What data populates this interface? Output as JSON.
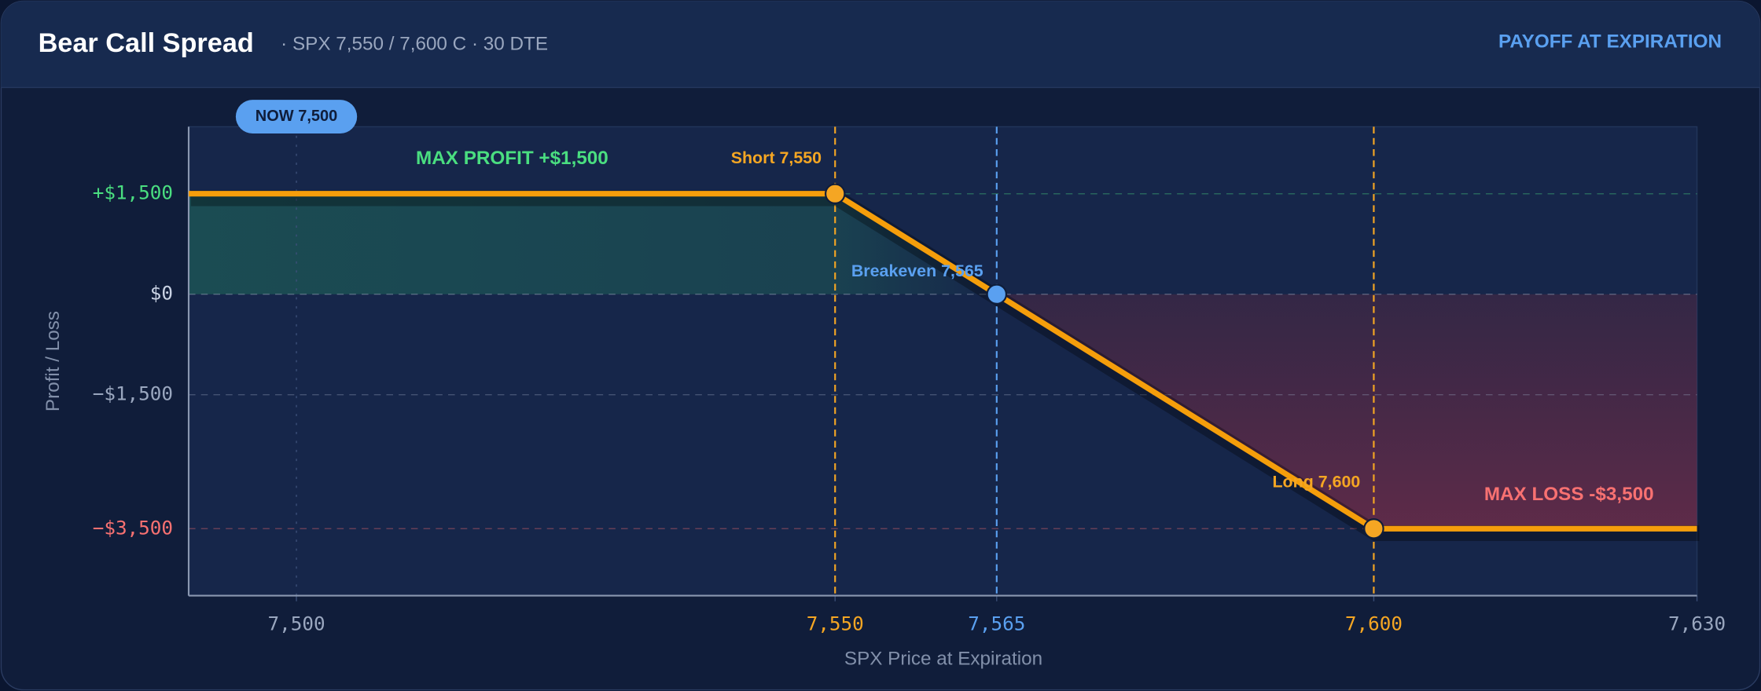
{
  "header": {
    "title": "Bear Call Spread",
    "subtitle": "· SPX 7,550 / 7,600 C · 30 DTE",
    "badge": "PAYOFF AT EXPIRATION"
  },
  "chart_data": {
    "type": "line",
    "x": [
      7490,
      7550,
      7565,
      7600,
      7630
    ],
    "values": [
      1500,
      1500,
      0,
      -3500,
      -3500
    ],
    "color": "#f59e0b",
    "xlim": [
      7490,
      7630
    ],
    "xticks": [
      {
        "value": 7500,
        "label": "7,500"
      },
      {
        "value": 7550,
        "label": "7,550"
      },
      {
        "value": 7565,
        "label": "7,565"
      },
      {
        "value": 7600,
        "label": "7,600"
      },
      {
        "value": 7630,
        "label": "7,630"
      }
    ],
    "xtick_colors": [
      "#9aa7bf",
      "#f5a623",
      "#5aa0f0",
      "#f5a623",
      "#9aa7bf"
    ],
    "ylim": [
      -4500,
      2500
    ],
    "yticks": [
      {
        "value": 1500,
        "label": "+$1,500"
      },
      {
        "value": 0,
        "label": "$0"
      },
      {
        "value": -1500,
        "label": "−$1,500"
      },
      {
        "value": -3500,
        "label": "−$3,500"
      }
    ],
    "ytick_colors": [
      "#4ade80",
      "#c9d2e3",
      "#9aa7bf",
      "#f87171"
    ],
    "grid": true,
    "xlabel": "SPX Price at Expiration",
    "ylabel": "Profit / Loss",
    "now": {
      "x": 7500,
      "label": "NOW 7,500"
    },
    "markers": [
      {
        "x": 7550,
        "label": "Short 7,550",
        "color": "#f5a623"
      },
      {
        "x": 7565,
        "label": "Breakeven 7,565",
        "color": "#5aa0f0"
      },
      {
        "x": 7600,
        "label": "Long 7,600",
        "color": "#f5a623"
      }
    ],
    "max_profit_label": "MAX PROFIT  +$1,500",
    "max_loss_label": "MAX LOSS  -$3,500"
  }
}
